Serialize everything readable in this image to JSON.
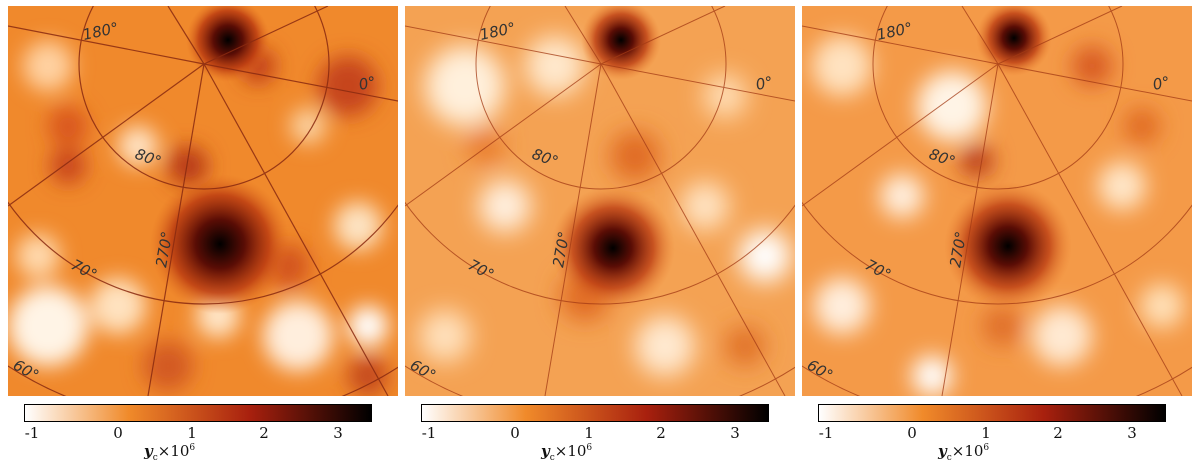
{
  "panels": [
    {
      "id": "left",
      "grid_labels": {
        "lon_180": "180°",
        "lon_0": "0°",
        "lon_270": "270°",
        "lat_80": "80°",
        "lat_70": "70°",
        "lat_60": "60°"
      },
      "colorbar": {
        "ticks": [
          "-1",
          "0",
          "1",
          "2",
          "3"
        ],
        "label_var": "y",
        "label_sub": "c",
        "label_rest": "×10",
        "label_exp": "6"
      }
    },
    {
      "id": "middle",
      "grid_labels": {
        "lon_180": "180°",
        "lon_0": "0°",
        "lon_270": "270°",
        "lat_80": "80°",
        "lat_70": "70°",
        "lat_60": "60°"
      },
      "colorbar": {
        "ticks": [
          "-1",
          "0",
          "1",
          "2",
          "3"
        ],
        "label_var": "y",
        "label_sub": "c",
        "label_rest": "×10",
        "label_exp": "6"
      }
    },
    {
      "id": "right",
      "grid_labels": {
        "lon_180": "180°",
        "lon_0": "0°",
        "lon_270": "270°",
        "lat_80": "80°",
        "lat_70": "70°",
        "lat_60": "60°"
      },
      "colorbar": {
        "ticks": [
          "-1",
          "0",
          "1",
          "2",
          "3"
        ],
        "label_var": "y",
        "label_sub": "c",
        "label_rest": "×10",
        "label_exp": "6"
      }
    }
  ],
  "colormap": {
    "low": "#ffffff",
    "mid": "#f08a2a",
    "high_mid": "#a8200e",
    "high": "#000000"
  }
}
